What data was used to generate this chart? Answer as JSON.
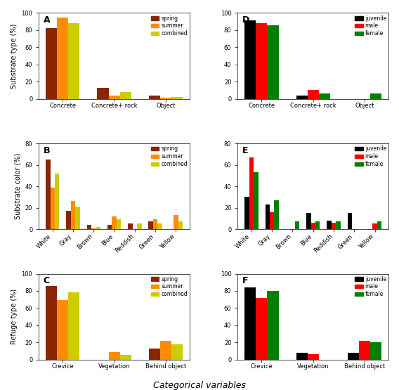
{
  "panel_A": {
    "label": "A",
    "categories": [
      "Concrete",
      "Concrete+ rock",
      "Object"
    ],
    "series": {
      "spring": [
        82,
        13,
        4
      ],
      "summer": [
        95,
        4,
        1
      ],
      "combined": [
        88,
        8,
        2
      ]
    },
    "colors": {
      "spring": "#8B2500",
      "summer": "#FF8C00",
      "combined": "#CCCC00"
    },
    "ylabel": "Substrate type (%)",
    "ylim": [
      0,
      100
    ],
    "yticks": [
      0,
      20,
      40,
      60,
      80,
      100
    ]
  },
  "panel_B": {
    "label": "B",
    "categories": [
      "White",
      "Gray",
      "Brown",
      "Blue",
      "Reddish",
      "Green",
      "Yellow"
    ],
    "series": {
      "spring": [
        65,
        17,
        4,
        4,
        5,
        7,
        0
      ],
      "summer": [
        39,
        26,
        1,
        12,
        0,
        9,
        13
      ],
      "combined": [
        52,
        21,
        2,
        9,
        5,
        5,
        7
      ]
    },
    "colors": {
      "spring": "#8B2500",
      "summer": "#FF8C00",
      "combined": "#CCCC00"
    },
    "ylabel": "Substrate color (%)",
    "ylim": [
      0,
      80
    ],
    "yticks": [
      0,
      20,
      40,
      60,
      80
    ]
  },
  "panel_C": {
    "label": "C",
    "categories": [
      "Crevice",
      "Vegetation",
      "Behind object"
    ],
    "series": {
      "spring": [
        86,
        0,
        13
      ],
      "summer": [
        69,
        9,
        22
      ],
      "combined": [
        78,
        5,
        18
      ]
    },
    "colors": {
      "spring": "#8B2500",
      "summer": "#FF8C00",
      "combined": "#CCCC00"
    },
    "ylabel": "Refuge type (%)",
    "ylim": [
      0,
      100
    ],
    "yticks": [
      0,
      20,
      40,
      60,
      80,
      100
    ]
  },
  "panel_D": {
    "label": "D",
    "categories": [
      "Concrete",
      "Concrete+ rock",
      "Object"
    ],
    "series": {
      "juvenile": [
        91,
        4,
        0
      ],
      "male": [
        88,
        10,
        0
      ],
      "female": [
        86,
        6,
        6
      ]
    },
    "colors": {
      "juvenile": "#000000",
      "male": "#FF0000",
      "female": "#008000"
    },
    "ylabel": "",
    "ylim": [
      0,
      100
    ],
    "yticks": [
      0,
      20,
      40,
      60,
      80,
      100
    ]
  },
  "panel_E": {
    "label": "E",
    "categories": [
      "White",
      "Gray",
      "Brown",
      "Blue",
      "Reddish",
      "Green",
      "Yellow"
    ],
    "series": {
      "juvenile": [
        30,
        23,
        0,
        15,
        8,
        15,
        0
      ],
      "male": [
        67,
        16,
        0,
        6,
        6,
        0,
        5
      ],
      "female": [
        53,
        27,
        7,
        7,
        7,
        0,
        7
      ]
    },
    "colors": {
      "juvenile": "#000000",
      "male": "#FF0000",
      "female": "#008000"
    },
    "ylabel": "",
    "ylim": [
      0,
      80
    ],
    "yticks": [
      0,
      20,
      40,
      60,
      80
    ]
  },
  "panel_F": {
    "label": "F",
    "categories": [
      "Crevice",
      "Vegetation",
      "Behind object"
    ],
    "series": {
      "juvenile": [
        84,
        8,
        8
      ],
      "male": [
        72,
        6,
        22
      ],
      "female": [
        80,
        0,
        20
      ]
    },
    "colors": {
      "juvenile": "#000000",
      "male": "#FF0000",
      "female": "#008000"
    },
    "ylabel": "",
    "ylim": [
      0,
      100
    ],
    "yticks": [
      0,
      20,
      40,
      60,
      80,
      100
    ]
  },
  "xlabel": "Categorical variables",
  "background_color": "#FFFFFF",
  "bar_width": 0.22
}
